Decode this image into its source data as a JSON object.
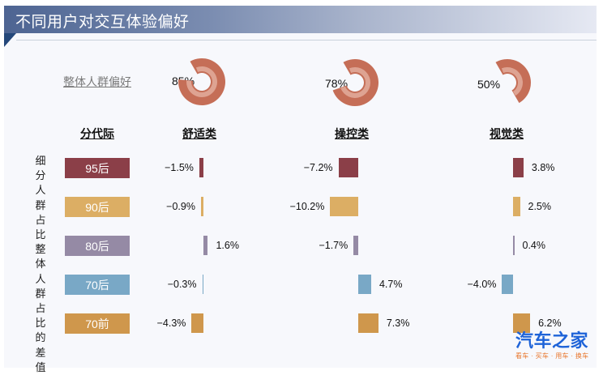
{
  "header": {
    "title": "不同用户对交互体验偏好"
  },
  "overall": {
    "label": "整体人群偏好",
    "items": [
      {
        "category": "舒适类",
        "value": 85,
        "label": "85%"
      },
      {
        "category": "操控类",
        "value": 78,
        "label": "78%"
      },
      {
        "category": "视觉类",
        "value": 50,
        "label": "50%"
      }
    ]
  },
  "columns": {
    "generation": "分代际",
    "comfort": "舒适类",
    "control": "操控类",
    "visual": "视觉类"
  },
  "side_label": "细分人群占比整体人群占比的差值",
  "rows": [
    {
      "label": "95后",
      "color": "#8b3f48",
      "comfort": "−1.5%",
      "control": "−7.2%",
      "visual": "3.8%"
    },
    {
      "label": "90后",
      "color": "#dcae64",
      "comfort": "−0.9%",
      "control": "−10.2%",
      "visual": "2.5%"
    },
    {
      "label": "80后",
      "color": "#958aa5",
      "comfort": "1.6%",
      "control": "−1.7%",
      "visual": "0.4%"
    },
    {
      "label": "70后",
      "color": "#79a8c6",
      "comfort": "−0.3%",
      "control": "4.7%",
      "visual": "−4.0%"
    },
    {
      "label": "70前",
      "color": "#cf974c",
      "comfort": "−4.3%",
      "control": "7.3%",
      "visual": "6.2%"
    }
  ],
  "colors": {
    "donut_outer": "#c56e57",
    "donut_inner": "#dea392",
    "title_start": "#4d6492",
    "title_end": "#e6e9f3",
    "title_tab": "#24477a"
  },
  "watermark": {
    "main": "汽车之家",
    "sub": "看车 · 买车 · 用车 · 换车"
  },
  "chart_data": [
    {
      "type": "pie",
      "title": "整体人群偏好",
      "categories": [
        "舒适类",
        "操控类",
        "视觉类"
      ],
      "values": [
        85,
        78,
        50
      ],
      "unit": "%"
    },
    {
      "type": "bar",
      "title": "细分人群占比整体人群占比的差值",
      "orientation": "horizontal",
      "categories": [
        "95后",
        "90后",
        "80后",
        "70后",
        "70前"
      ],
      "series": [
        {
          "name": "舒适类",
          "values": [
            -1.5,
            -0.9,
            1.6,
            -0.3,
            -4.3
          ]
        },
        {
          "name": "操控类",
          "values": [
            -7.2,
            -10.2,
            -1.7,
            4.7,
            7.3
          ]
        },
        {
          "name": "视觉类",
          "values": [
            3.8,
            2.5,
            0.4,
            -4.0,
            6.2
          ]
        }
      ],
      "unit": "%",
      "xlabel": "",
      "ylabel": "分代际"
    }
  ]
}
